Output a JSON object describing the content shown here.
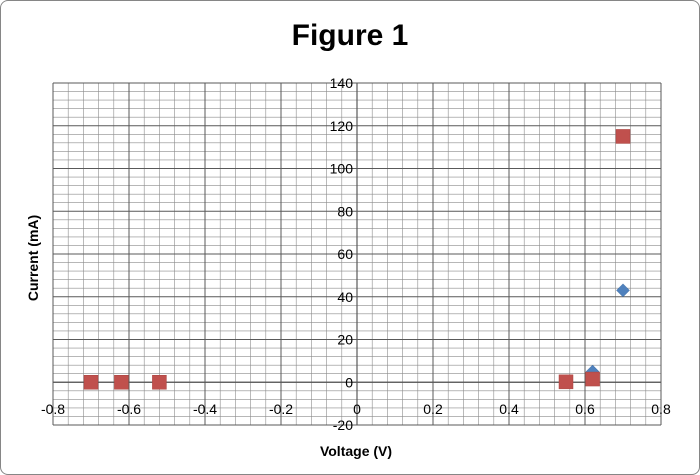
{
  "chart_data": {
    "type": "scatter",
    "title": "Figure 1",
    "xlabel": "Voltage (V)",
    "ylabel": "Current (mA)",
    "xlim": [
      -0.8,
      0.8
    ],
    "ylim": [
      -20,
      140
    ],
    "x_ticks": [
      -0.8,
      -0.6,
      -0.4,
      -0.2,
      0,
      0.2,
      0.4,
      0.6,
      0.8
    ],
    "y_ticks": [
      -20,
      0,
      20,
      40,
      60,
      80,
      100,
      120,
      140
    ],
    "x_tick_labels": [
      "-0.8",
      "-0.6",
      "-0.4",
      "-0.2",
      "0",
      "0.2",
      "0.4",
      "0.6",
      "0.8"
    ],
    "y_tick_labels": [
      "-20",
      "0",
      "20",
      "40",
      "60",
      "80",
      "100",
      "120",
      "140"
    ],
    "grid": true,
    "legend": "none",
    "series": [
      {
        "marker": "diamond",
        "color": "#4f81bd",
        "points": [
          {
            "x": -0.7,
            "y": 0
          },
          {
            "x": -0.62,
            "y": 0
          },
          {
            "x": -0.52,
            "y": 0
          },
          {
            "x": 0.55,
            "y": 0.5
          },
          {
            "x": 0.62,
            "y": 5
          },
          {
            "x": 0.7,
            "y": 43
          }
        ]
      },
      {
        "marker": "square",
        "color": "#c0504d",
        "points": [
          {
            "x": -0.7,
            "y": 0
          },
          {
            "x": -0.62,
            "y": 0
          },
          {
            "x": -0.52,
            "y": 0
          },
          {
            "x": 0.55,
            "y": 0.2
          },
          {
            "x": 0.62,
            "y": 1.5
          },
          {
            "x": 0.7,
            "y": 115
          }
        ]
      }
    ]
  }
}
